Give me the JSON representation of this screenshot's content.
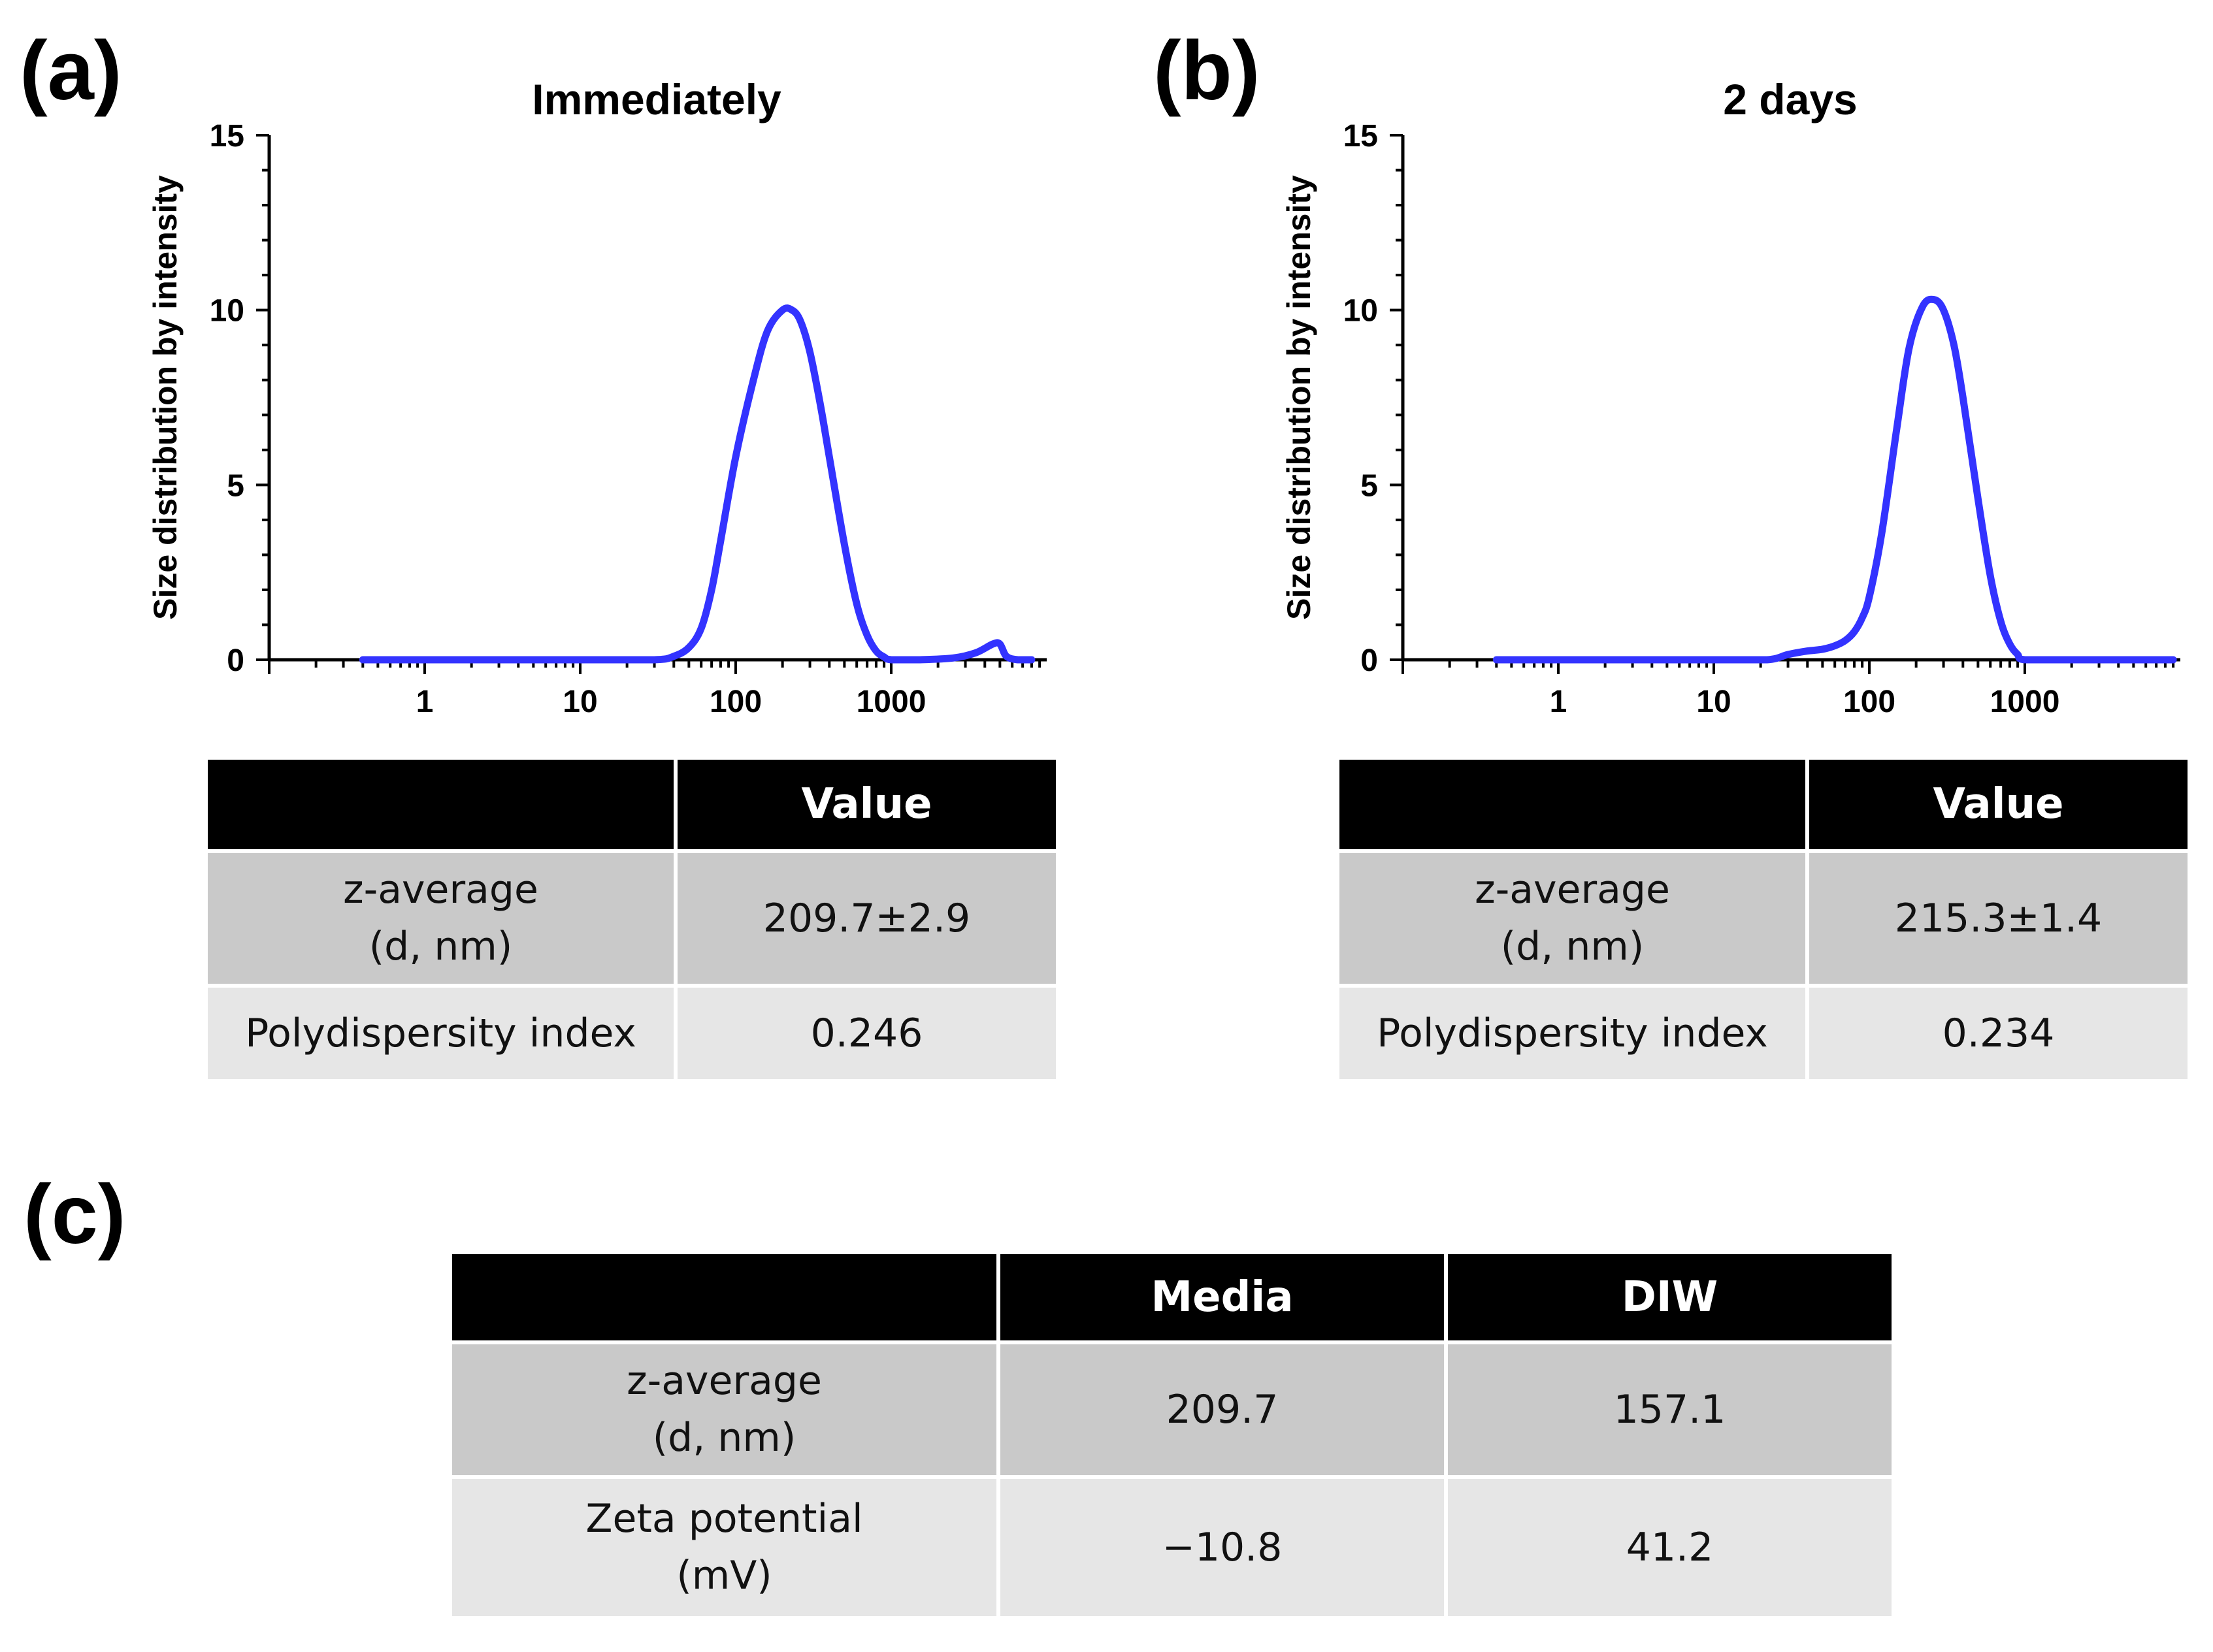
{
  "panels": {
    "a": {
      "label": "(a)",
      "table": {
        "header": [
          "",
          "Value"
        ],
        "rows": [
          [
            "z-average\n(d, nm)",
            "209.7±2.9"
          ],
          [
            "Polydispersity index",
            "0.246"
          ]
        ]
      }
    },
    "b": {
      "label": "(b)",
      "table": {
        "header": [
          "",
          "Value"
        ],
        "rows": [
          [
            "z-average\n(d, nm)",
            "215.3±1.4"
          ],
          [
            "Polydispersity index",
            "0.234"
          ]
        ]
      }
    },
    "c": {
      "label": "(c)",
      "table": {
        "header": [
          "",
          "Media",
          "DIW"
        ],
        "rows": [
          [
            "z-average\n(d, nm)",
            "209.7",
            "157.1"
          ],
          [
            "Zeta potential\n(mV)",
            "−10.8",
            "41.2"
          ]
        ]
      }
    }
  },
  "chart_data": [
    {
      "type": "line",
      "title": "Immediately",
      "xlabel": "",
      "ylabel": "Size distribution by intensity",
      "xscale": "log",
      "xlim": [
        0.1,
        10000
      ],
      "ylim": [
        0,
        15
      ],
      "xticks": [
        1,
        10,
        100,
        1000
      ],
      "xtick_labels": [
        "1",
        "10",
        "100",
        "1000"
      ],
      "yticks": [
        0,
        5,
        10,
        15
      ],
      "ytick_labels": [
        "0",
        "5",
        "10",
        "15"
      ],
      "color": "#3333ff",
      "series": [
        {
          "name": "Immediately",
          "x": [
            0.4,
            1,
            10,
            30,
            40,
            50,
            60,
            70,
            80,
            100,
            130,
            160,
            200,
            230,
            260,
            300,
            350,
            400,
            500,
            600,
            700,
            800,
            900,
            1000,
            1500,
            2500,
            3500,
            4500,
            5000,
            5500,
            6500,
            8000
          ],
          "y": [
            0,
            0,
            0,
            0,
            0.1,
            0.35,
            0.9,
            2.0,
            3.4,
            5.8,
            8.0,
            9.4,
            10.0,
            10.0,
            9.7,
            8.8,
            7.3,
            5.8,
            3.3,
            1.6,
            0.7,
            0.25,
            0.08,
            0,
            0,
            0.05,
            0.2,
            0.45,
            0.45,
            0.1,
            0,
            0
          ]
        }
      ]
    },
    {
      "type": "line",
      "title": "2 days",
      "xlabel": "",
      "ylabel": "Size distribution by intensity",
      "xscale": "log",
      "xlim": [
        0.1,
        10000
      ],
      "ylim": [
        0,
        15
      ],
      "xticks": [
        1,
        10,
        100,
        1000
      ],
      "xtick_labels": [
        "1",
        "10",
        "100",
        "1000"
      ],
      "yticks": [
        0,
        5,
        10,
        15
      ],
      "ytick_labels": [
        "0",
        "5",
        "10",
        "15"
      ],
      "color": "#3333ff",
      "series": [
        {
          "name": "2 days",
          "x": [
            0.4,
            1,
            10,
            22,
            30,
            40,
            50,
            60,
            70,
            80,
            90,
            100,
            120,
            150,
            180,
            220,
            260,
            300,
            350,
            400,
            500,
            600,
            700,
            800,
            900,
            1000,
            2000,
            9000
          ],
          "y": [
            0,
            0,
            0,
            0,
            0.15,
            0.25,
            0.3,
            0.4,
            0.55,
            0.8,
            1.2,
            1.8,
            3.6,
            6.6,
            8.9,
            10.1,
            10.3,
            10.0,
            9.0,
            7.5,
            4.6,
            2.4,
            1.1,
            0.45,
            0.15,
            0,
            0,
            0
          ]
        }
      ]
    }
  ]
}
